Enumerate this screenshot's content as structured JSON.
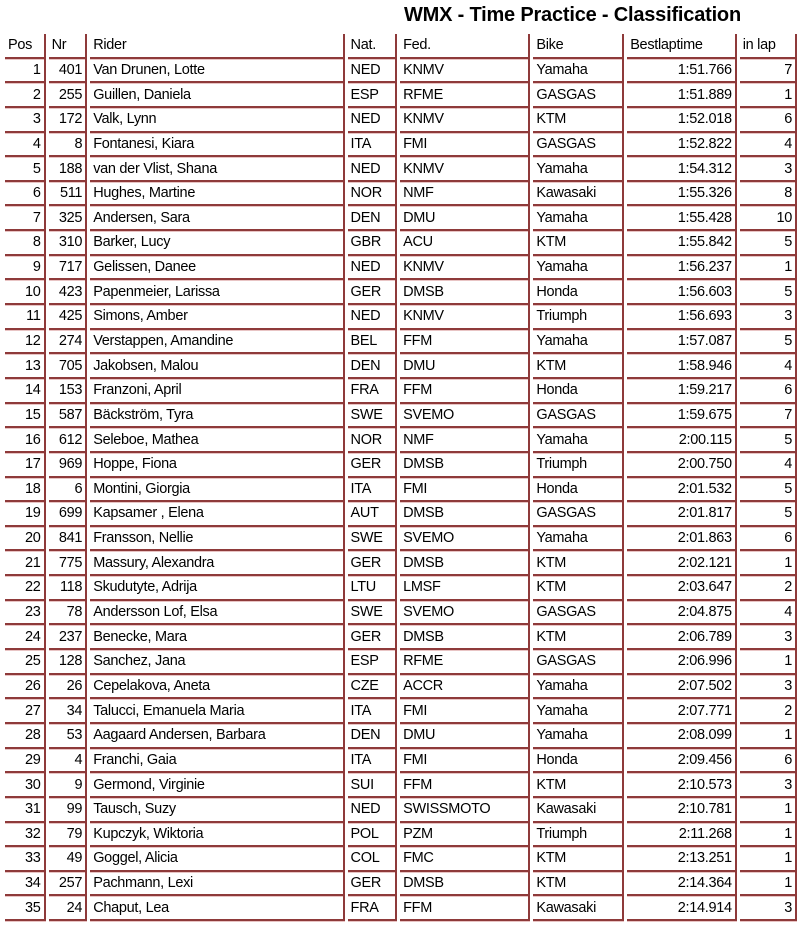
{
  "title": "WMX - Time Practice - Classification",
  "columns": [
    "Pos",
    "Nr",
    "Rider",
    "Nat.",
    "Fed.",
    "Bike",
    "Bestlaptime",
    "in lap"
  ],
  "rows": [
    [
      "1",
      "401",
      "Van Drunen, Lotte",
      "NED",
      "KNMV",
      "Yamaha",
      "1:51.766",
      "7"
    ],
    [
      "2",
      "255",
      "Guillen, Daniela",
      "ESP",
      "RFME",
      "GASGAS",
      "1:51.889",
      "1"
    ],
    [
      "3",
      "172",
      "Valk, Lynn",
      "NED",
      "KNMV",
      "KTM",
      "1:52.018",
      "6"
    ],
    [
      "4",
      "8",
      "Fontanesi, Kiara",
      "ITA",
      "FMI",
      "GASGAS",
      "1:52.822",
      "4"
    ],
    [
      "5",
      "188",
      "van der Vlist, Shana",
      "NED",
      "KNMV",
      "Yamaha",
      "1:54.312",
      "3"
    ],
    [
      "6",
      "511",
      "Hughes, Martine",
      "NOR",
      "NMF",
      "Kawasaki",
      "1:55.326",
      "8"
    ],
    [
      "7",
      "325",
      "Andersen, Sara",
      "DEN",
      "DMU",
      "Yamaha",
      "1:55.428",
      "10"
    ],
    [
      "8",
      "310",
      "Barker, Lucy",
      "GBR",
      "ACU",
      "KTM",
      "1:55.842",
      "5"
    ],
    [
      "9",
      "717",
      "Gelissen, Danee",
      "NED",
      "KNMV",
      "Yamaha",
      "1:56.237",
      "1"
    ],
    [
      "10",
      "423",
      "Papenmeier, Larissa",
      "GER",
      "DMSB",
      "Honda",
      "1:56.603",
      "5"
    ],
    [
      "11",
      "425",
      "Simons, Amber",
      "NED",
      "KNMV",
      "Triumph",
      "1:56.693",
      "3"
    ],
    [
      "12",
      "274",
      "Verstappen, Amandine",
      "BEL",
      "FFM",
      "Yamaha",
      "1:57.087",
      "5"
    ],
    [
      "13",
      "705",
      "Jakobsen, Malou",
      "DEN",
      "DMU",
      "KTM",
      "1:58.946",
      "4"
    ],
    [
      "14",
      "153",
      "Franzoni, April",
      "FRA",
      "FFM",
      "Honda",
      "1:59.217",
      "6"
    ],
    [
      "15",
      "587",
      "Bäckström, Tyra",
      "SWE",
      "SVEMO",
      "GASGAS",
      "1:59.675",
      "7"
    ],
    [
      "16",
      "612",
      "Seleboe, Mathea",
      "NOR",
      "NMF",
      "Yamaha",
      "2:00.115",
      "5"
    ],
    [
      "17",
      "969",
      "Hoppe, Fiona",
      "GER",
      "DMSB",
      "Triumph",
      "2:00.750",
      "4"
    ],
    [
      "18",
      "6",
      "Montini, Giorgia",
      "ITA",
      "FMI",
      "Honda",
      "2:01.532",
      "5"
    ],
    [
      "19",
      "699",
      "Kapsamer , Elena",
      "AUT",
      "DMSB",
      "GASGAS",
      "2:01.817",
      "5"
    ],
    [
      "20",
      "841",
      "Fransson, Nellie",
      "SWE",
      "SVEMO",
      "Yamaha",
      "2:01.863",
      "6"
    ],
    [
      "21",
      "775",
      "Massury, Alexandra",
      "GER",
      "DMSB",
      "KTM",
      "2:02.121",
      "1"
    ],
    [
      "22",
      "118",
      "Skudutyte, Adrija",
      "LTU",
      "LMSF",
      "KTM",
      "2:03.647",
      "2"
    ],
    [
      "23",
      "78",
      "Andersson Lof, Elsa",
      "SWE",
      "SVEMO",
      "GASGAS",
      "2:04.875",
      "4"
    ],
    [
      "24",
      "237",
      "Benecke, Mara",
      "GER",
      "DMSB",
      "KTM",
      "2:06.789",
      "3"
    ],
    [
      "25",
      "128",
      "Sanchez, Jana",
      "ESP",
      "RFME",
      "GASGAS",
      "2:06.996",
      "1"
    ],
    [
      "26",
      "26",
      "Cepelakova, Aneta",
      "CZE",
      "ACCR",
      "Yamaha",
      "2:07.502",
      "3"
    ],
    [
      "27",
      "34",
      "Talucci, Emanuela Maria",
      "ITA",
      "FMI",
      "Yamaha",
      "2:07.771",
      "2"
    ],
    [
      "28",
      "53",
      "Aagaard Andersen, Barbara",
      "DEN",
      "DMU",
      "Yamaha",
      "2:08.099",
      "1"
    ],
    [
      "29",
      "4",
      "Franchi, Gaia",
      "ITA",
      "FMI",
      "Honda",
      "2:09.456",
      "6"
    ],
    [
      "30",
      "9",
      "Germond, Virginie",
      "SUI",
      "FFM",
      "KTM",
      "2:10.573",
      "3"
    ],
    [
      "31",
      "99",
      "Tausch, Suzy",
      "NED",
      "SWISSMOTO",
      "Kawasaki",
      "2:10.781",
      "1"
    ],
    [
      "32",
      "79",
      "Kupczyk, Wiktoria",
      "POL",
      "PZM",
      "Triumph",
      "2:11.268",
      "1"
    ],
    [
      "33",
      "49",
      "Goggel, Alicia",
      "COL",
      "FMC",
      "KTM",
      "2:13.251",
      "1"
    ],
    [
      "34",
      "257",
      "Pachmann, Lexi",
      "GER",
      "DMSB",
      "KTM",
      "2:14.364",
      "1"
    ],
    [
      "35",
      "24",
      "Chaput, Lea",
      "FRA",
      "FFM",
      "Kawasaki",
      "2:14.914",
      "3"
    ]
  ],
  "colors": {
    "border": "#8e3a3a"
  }
}
